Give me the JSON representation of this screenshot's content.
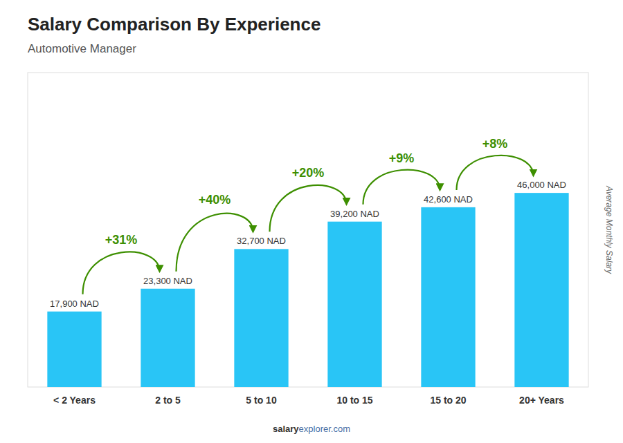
{
  "chart_data": {
    "type": "bar",
    "title": "Salary Comparison By Experience",
    "subtitle": "Automotive Manager",
    "categories": [
      "< 2 Years",
      "2 to 5",
      "5 to 10",
      "10 to 15",
      "15 to 20",
      "20+ Years"
    ],
    "values": [
      17900,
      23300,
      32700,
      39200,
      42600,
      46000
    ],
    "value_labels": [
      "17,900 NAD",
      "23,300 NAD",
      "32,700 NAD",
      "39,200 NAD",
      "42,600 NAD",
      "46,000 NAD"
    ],
    "data_labels": true,
    "annotations": [
      "+31%",
      "+40%",
      "+20%",
      "+9%",
      "+8%"
    ],
    "ylabel": "Average Monthly Salary",
    "footer": [
      "salary",
      "explorer.com"
    ],
    "color": "#29c5f6",
    "ylim": [
      0,
      74520
    ],
    "tick_labels": "x",
    "grid": false
  }
}
